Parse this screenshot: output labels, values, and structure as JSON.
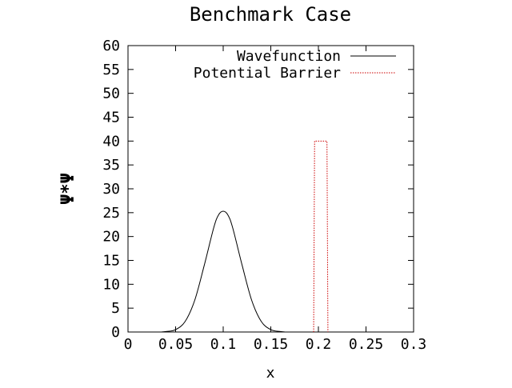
{
  "chart_data": {
    "type": "line",
    "title": "Benchmark Case",
    "xlabel": "x",
    "ylabel": "Ψ*Ψ",
    "xlim": [
      0,
      0.3
    ],
    "ylim": [
      0,
      60
    ],
    "xticks": [
      0,
      0.05,
      0.1,
      0.15,
      0.2,
      0.25,
      0.3
    ],
    "xtick_labels": [
      "0",
      "0.05",
      "0.1",
      "0.15",
      "0.2",
      "0.25",
      "0.3"
    ],
    "yticks": [
      0,
      5,
      10,
      15,
      20,
      25,
      30,
      35,
      40,
      45,
      50,
      55,
      60
    ],
    "ytick_labels": [
      "0",
      "5",
      "10",
      "15",
      "20",
      "25",
      "30",
      "35",
      "40",
      "45",
      "50",
      "55",
      "60"
    ],
    "grid": false,
    "legend_position": "top-right",
    "series": [
      {
        "name": "Wavefunction",
        "style": "solid",
        "color": "#000000",
        "x": [
          0.04,
          0.05,
          0.06,
          0.07,
          0.08,
          0.09,
          0.095,
          0.1,
          0.105,
          0.11,
          0.12,
          0.13,
          0.14,
          0.15,
          0.16
        ],
        "y": [
          0.1,
          0.5,
          2.2,
          6.6,
          13.9,
          21.8,
          24.5,
          25.3,
          24.5,
          21.8,
          13.9,
          6.6,
          2.2,
          0.5,
          0.1
        ]
      },
      {
        "name": "Potential Barrier",
        "style": "dotted",
        "color": "#cc0000",
        "x": [
          0.195,
          0.196,
          0.199,
          0.209,
          0.21
        ],
        "y": [
          0,
          40,
          40,
          40,
          0
        ]
      }
    ]
  }
}
